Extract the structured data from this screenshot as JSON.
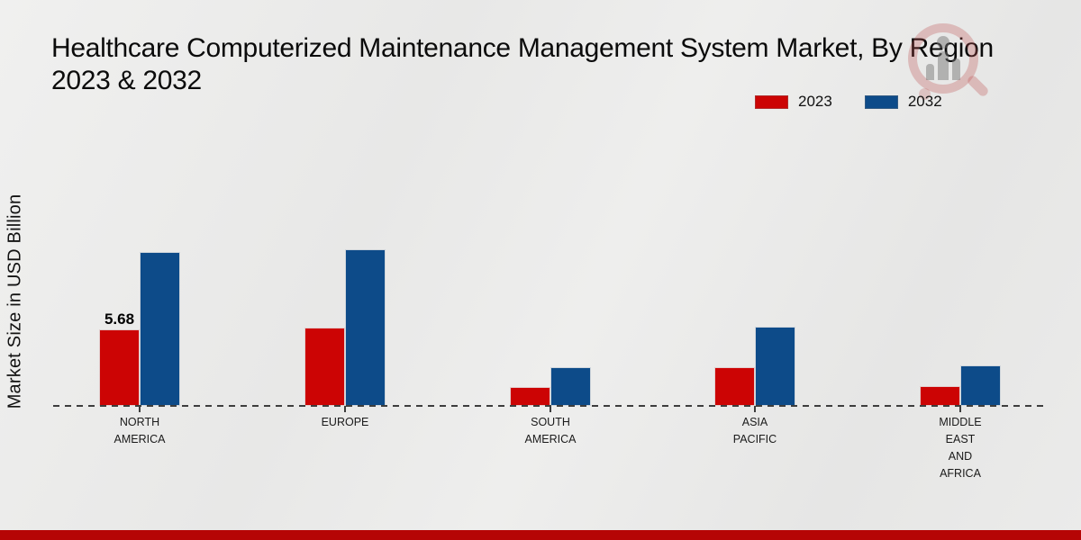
{
  "title": {
    "line1": "Healthcare Computerized Maintenance Management System Market, By Region",
    "line2": "2023 & 2032"
  },
  "y_axis_label": "Market Size in USD Billion",
  "legend": {
    "items": [
      {
        "label": "2023",
        "color": "#cc0404"
      },
      {
        "label": "2032",
        "color": "#0d4b89"
      }
    ]
  },
  "colors": {
    "series_2023": "#cc0404",
    "series_2032": "#0d4b89",
    "bottom_strip": "#b50505",
    "background": "#eaeae9"
  },
  "chart_data": {
    "type": "bar",
    "title": "Healthcare Computerized Maintenance Management System Market, By Region 2023 & 2032",
    "ylabel": "Market Size in USD Billion",
    "xlabel": "",
    "legend_position": "top-right",
    "grid": false,
    "baseline_style": "dashed",
    "categories": [
      "NORTH AMERICA",
      "EUROPE",
      "SOUTH AMERICA",
      "ASIA PACIFIC",
      "MIDDLE EAST AND AFRICA"
    ],
    "category_label_lines": [
      [
        "NORTH",
        "AMERICA"
      ],
      [
        "EUROPE"
      ],
      [
        "SOUTH",
        "AMERICA"
      ],
      [
        "ASIA",
        "PACIFIC"
      ],
      [
        "MIDDLE",
        "EAST",
        "AND",
        "AFRICA"
      ]
    ],
    "series": [
      {
        "name": "2023",
        "color": "#cc0404",
        "values": [
          5.68,
          5.8,
          1.4,
          2.9,
          1.5
        ]
      },
      {
        "name": "2032",
        "color": "#0d4b89",
        "values": [
          11.4,
          11.6,
          2.9,
          5.9,
          3.0
        ]
      }
    ],
    "annotations": [
      {
        "series": "2023",
        "category": "NORTH AMERICA",
        "text": "5.68"
      }
    ],
    "ylim": [
      0,
      13
    ]
  }
}
